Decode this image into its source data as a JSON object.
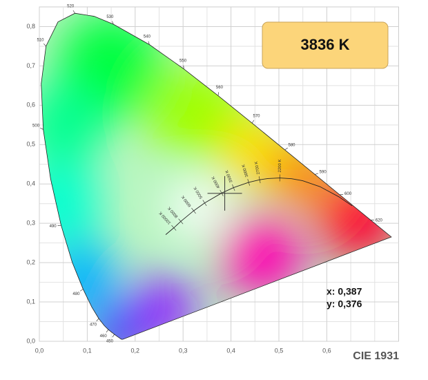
{
  "chart_data": {
    "type": "chromaticity",
    "title": "CIE 1931",
    "xlim": [
      0,
      0.75
    ],
    "ylim": [
      0,
      0.85
    ],
    "xticks": [
      {
        "value": 0,
        "label": "0,0"
      },
      {
        "value": 0.1,
        "label": "0,1"
      },
      {
        "value": 0.2,
        "label": "0,2"
      },
      {
        "value": 0.3,
        "label": "0,3"
      },
      {
        "value": 0.4,
        "label": "0,4"
      },
      {
        "value": 0.5,
        "label": "0,5"
      },
      {
        "value": 0.6,
        "label": "0,6"
      }
    ],
    "yticks": [
      {
        "value": 0,
        "label": "0,0"
      },
      {
        "value": 0.1,
        "label": "0,1"
      },
      {
        "value": 0.2,
        "label": "0,2"
      },
      {
        "value": 0.3,
        "label": "0,3"
      },
      {
        "value": 0.4,
        "label": "0,4"
      },
      {
        "value": 0.5,
        "label": "0,5"
      },
      {
        "value": 0.6,
        "label": "0,6"
      },
      {
        "value": 0.7,
        "label": "0,7"
      },
      {
        "value": 0.8,
        "label": "0,8"
      }
    ],
    "grid": true,
    "spectral_locus": {
      "x": [
        0.1741,
        0.1714,
        0.1644,
        0.1566,
        0.144,
        0.1355,
        0.1241,
        0.1096,
        0.0913,
        0.0687,
        0.0454,
        0.0235,
        0.0082,
        0.0039,
        0.0139,
        0.0389,
        0.0743,
        0.1142,
        0.1547,
        0.2296,
        0.3016,
        0.3731,
        0.4441,
        0.5125,
        0.5752,
        0.627,
        0.6915,
        0.719,
        0.7347
      ],
      "y": [
        0.005,
        0.0051,
        0.0109,
        0.0177,
        0.0297,
        0.0399,
        0.0578,
        0.0868,
        0.1327,
        0.2007,
        0.295,
        0.4127,
        0.5384,
        0.6548,
        0.7502,
        0.812,
        0.8338,
        0.8262,
        0.8059,
        0.7543,
        0.6923,
        0.6245,
        0.5547,
        0.4866,
        0.4242,
        0.3725,
        0.3083,
        0.2809,
        0.2653
      ],
      "labels": [
        null,
        null,
        null,
        "450",
        "460",
        null,
        "470",
        null,
        "480",
        null,
        "490",
        null,
        "500",
        null,
        "510",
        null,
        "520",
        null,
        "530",
        "540",
        "550",
        "560",
        "570",
        "580",
        "590",
        "600",
        "620",
        null,
        null
      ]
    },
    "planckian_locus": {
      "x": [
        0.2637,
        0.2807,
        0.2952,
        0.3221,
        0.3451,
        0.3805,
        0.4053,
        0.4369,
        0.4599,
        0.477,
        0.5018,
        0.5267,
        0.5496,
        0.5857,
        0.6251,
        0.6528
      ],
      "y": [
        0.2711,
        0.2884,
        0.3048,
        0.3318,
        0.3516,
        0.3768,
        0.3907,
        0.4041,
        0.4106,
        0.4137,
        0.4153,
        0.4133,
        0.4081,
        0.3931,
        0.3674,
        0.3444
      ],
      "labels": [
        null,
        "10000 K",
        "8000 K",
        "6000 K",
        "5000 K",
        "4000 K",
        "3500 K",
        "3000 K",
        "2700 K",
        null,
        "2200 K",
        null,
        null,
        null,
        null,
        null
      ]
    },
    "point": {
      "x": 0.387,
      "y": 0.376,
      "label_x": "x: 0,387",
      "label_y": "y: 0,376"
    },
    "cct_label": "3836 K"
  }
}
